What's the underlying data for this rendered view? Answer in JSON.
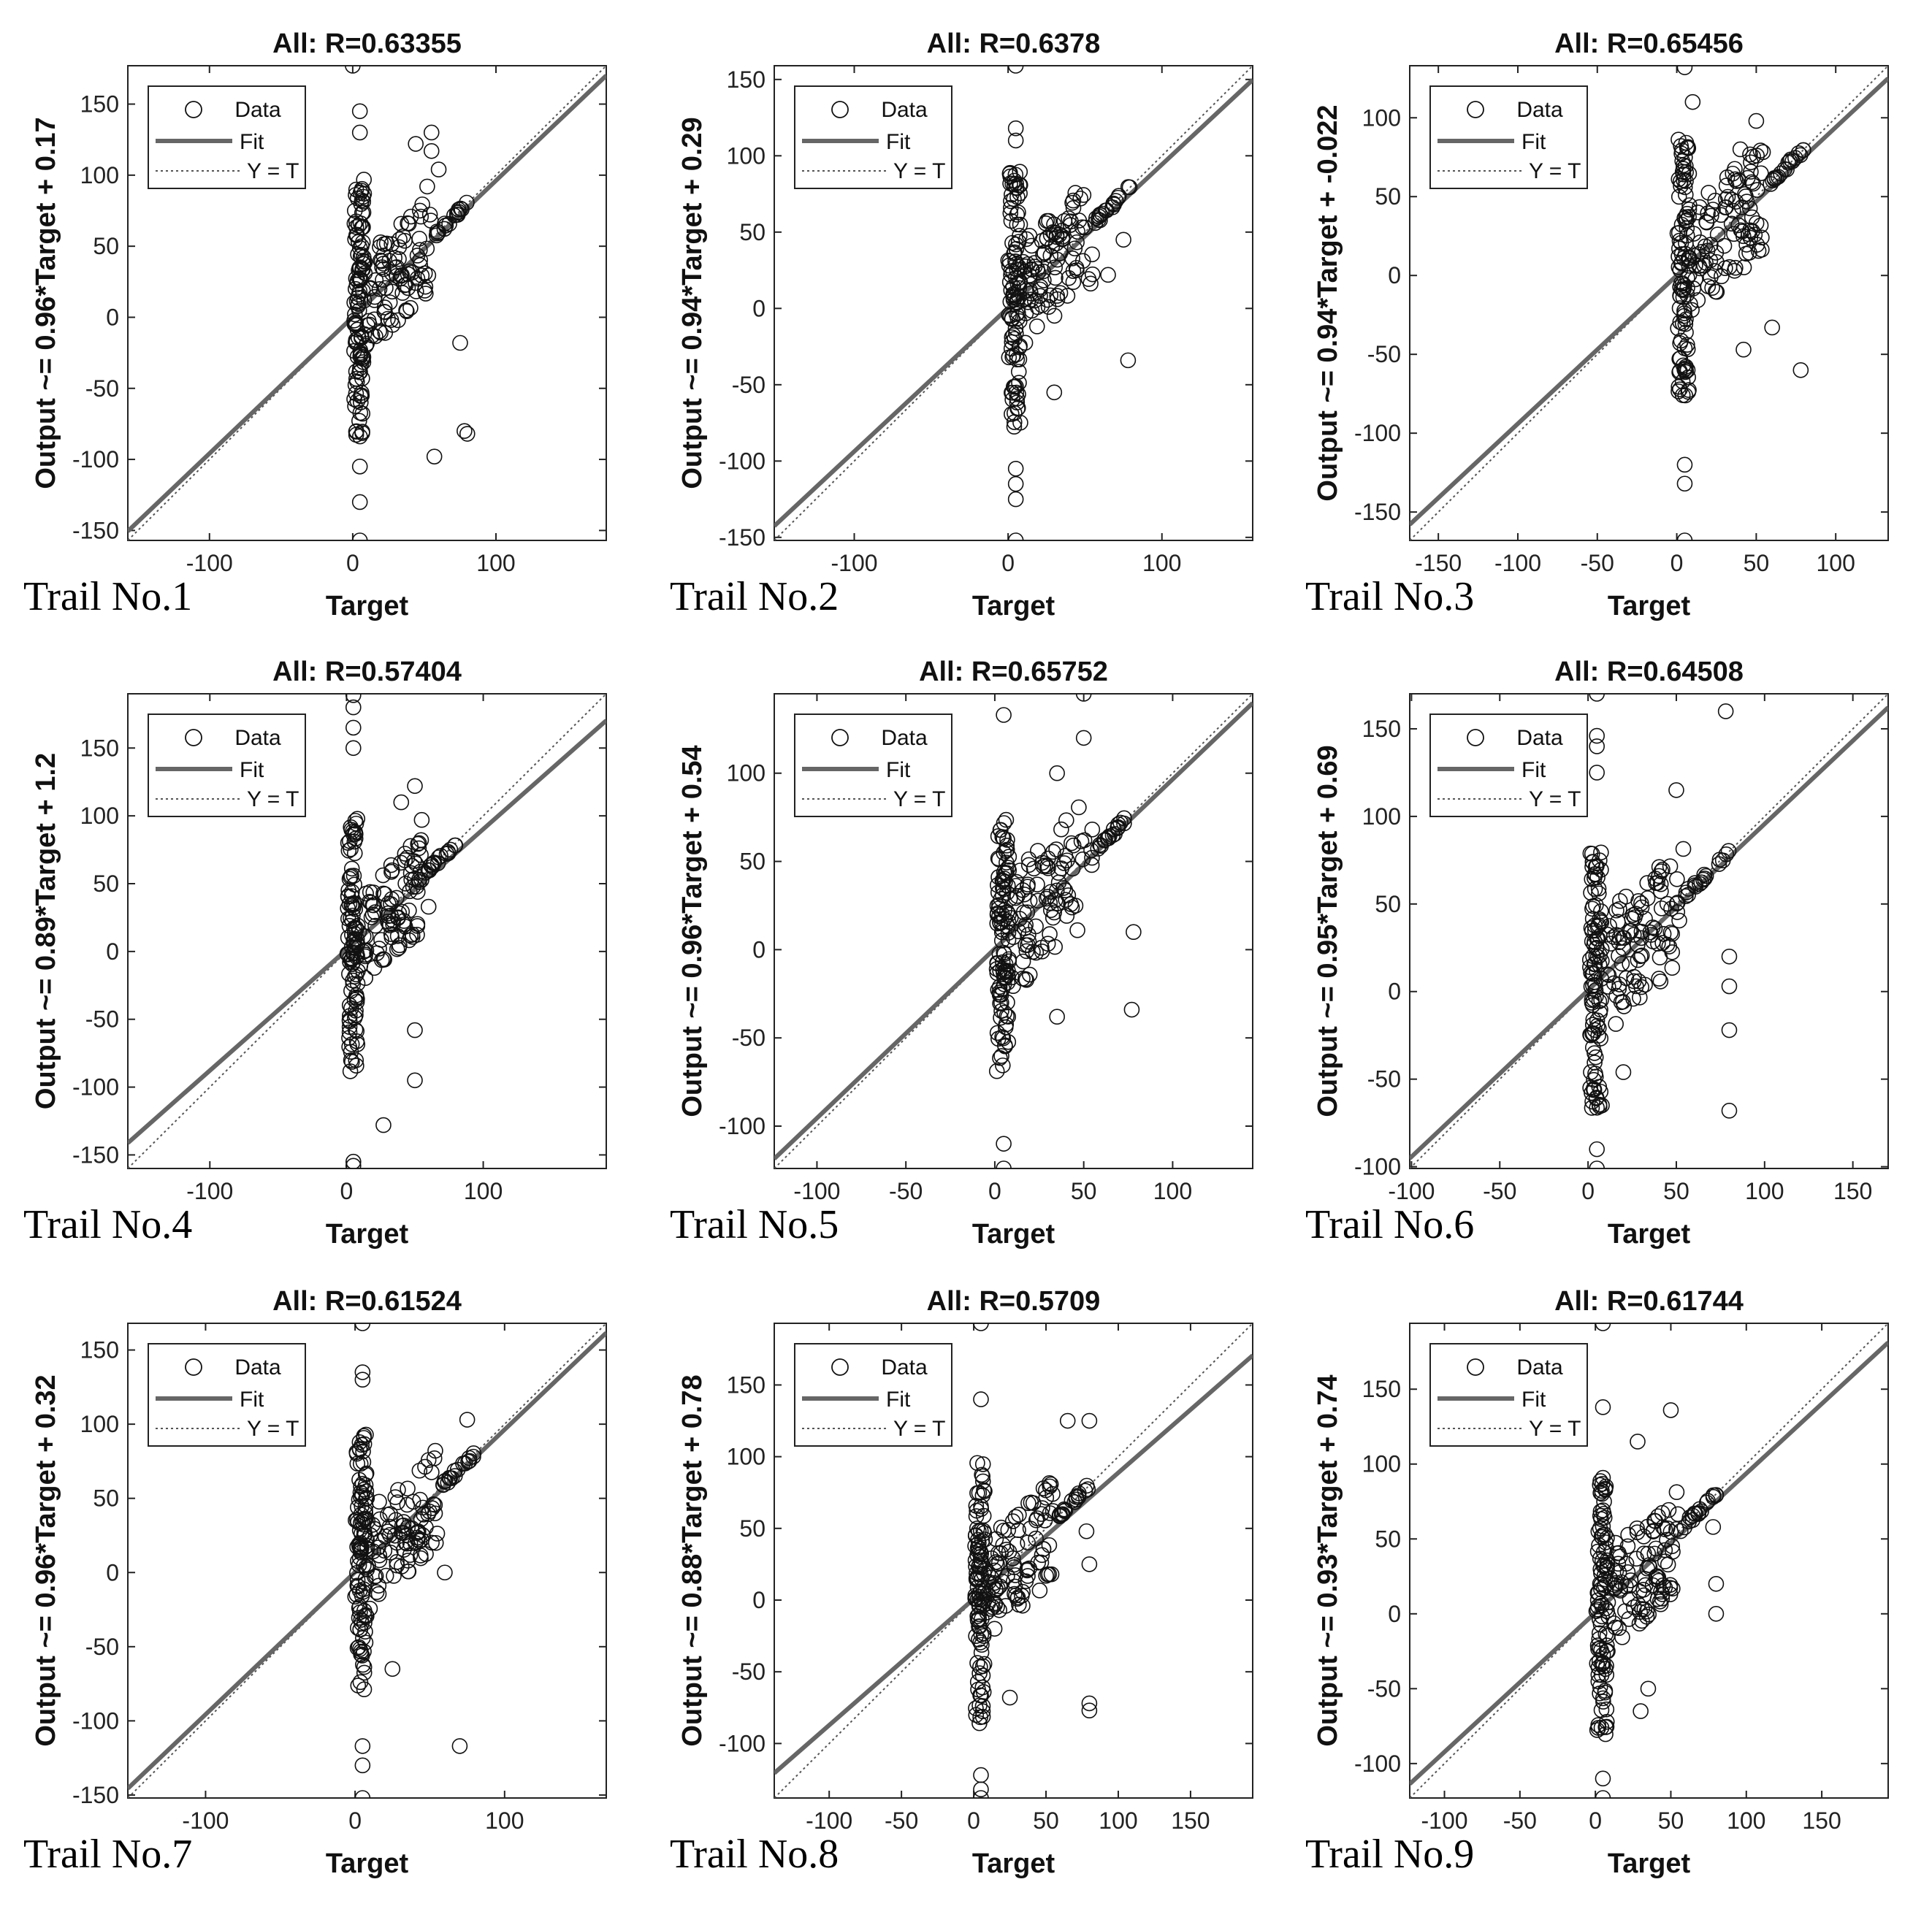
{
  "figure": {
    "legend": {
      "data": "Data",
      "fit": "Fit",
      "yt": "Y = T"
    },
    "colors": {
      "fit_line": "#666666",
      "identity_line": "#555555",
      "marker": "#111111",
      "axis": "#222222"
    }
  },
  "chart_data": [
    {
      "type": "scatter",
      "trial_label": "Trail No.1",
      "title": "All: R=0.63355",
      "xlabel": "Target",
      "ylabel": "Output ~= 0.96*Target + 0.17",
      "slope": 0.96,
      "intercept": 0.17,
      "xlim": [
        -157,
        177
      ],
      "ylim": [
        -157,
        177
      ],
      "xticks": [
        -100,
        0,
        100
      ],
      "yticks": [
        -150,
        -100,
        -50,
        0,
        50,
        100,
        150
      ],
      "seed": 11,
      "extremes": [
        [
          0,
          177
        ],
        [
          5,
          145
        ],
        [
          5,
          130
        ],
        [
          55,
          130
        ],
        [
          44,
          122
        ],
        [
          55,
          117
        ],
        [
          60,
          104
        ],
        [
          52,
          92
        ],
        [
          75,
          -18
        ],
        [
          78,
          -80
        ],
        [
          80,
          -82
        ],
        [
          57,
          -98
        ],
        [
          5,
          -105
        ],
        [
          5,
          -130
        ],
        [
          5,
          -157
        ]
      ]
    },
    {
      "type": "scatter",
      "trial_label": "Trail No.2",
      "title": "All: R=0.6378",
      "xlabel": "Target",
      "ylabel": "Output ~= 0.94*Target + 0.29",
      "slope": 0.94,
      "intercept": 0.29,
      "xlim": [
        -152,
        159
      ],
      "ylim": [
        -152,
        159
      ],
      "xticks": [
        -100,
        0,
        100
      ],
      "yticks": [
        -150,
        -100,
        -50,
        0,
        50,
        100,
        150
      ],
      "seed": 22,
      "extremes": [
        [
          5,
          159
        ],
        [
          5,
          118
        ],
        [
          5,
          110
        ],
        [
          75,
          45
        ],
        [
          65,
          22
        ],
        [
          78,
          -34
        ],
        [
          30,
          -55
        ],
        [
          5,
          -105
        ],
        [
          5,
          -115
        ],
        [
          5,
          -125
        ],
        [
          5,
          -152
        ]
      ]
    },
    {
      "type": "scatter",
      "trial_label": "Trail No.3",
      "title": "All: R=0.65456",
      "xlabel": "Target",
      "ylabel": "Output ~= 0.94*Target + -0.022",
      "slope": 0.94,
      "intercept": -0.022,
      "xlim": [
        -168,
        133
      ],
      "ylim": [
        -168,
        133
      ],
      "xticks": [
        -150,
        -100,
        -50,
        0,
        50,
        100
      ],
      "yticks": [
        -150,
        -100,
        -50,
        0,
        50,
        100
      ],
      "seed": 33,
      "extremes": [
        [
          5,
          132
        ],
        [
          10,
          110
        ],
        [
          50,
          98
        ],
        [
          40,
          80
        ],
        [
          60,
          -33
        ],
        [
          78,
          -60
        ],
        [
          42,
          -47
        ],
        [
          5,
          -120
        ],
        [
          5,
          -132
        ],
        [
          5,
          -168
        ]
      ]
    },
    {
      "type": "scatter",
      "trial_label": "Trail No.4",
      "title": "All: R=0.57404",
      "xlabel": "Target",
      "ylabel": "Output ~= 0.89*Target + 1.2",
      "slope": 0.89,
      "intercept": 1.2,
      "xlim": [
        -160,
        190
      ],
      "ylim": [
        -160,
        190
      ],
      "xticks": [
        -100,
        0,
        100
      ],
      "yticks": [
        -150,
        -100,
        -50,
        0,
        50,
        100,
        150
      ],
      "seed": 44,
      "extremes": [
        [
          5,
          189
        ],
        [
          5,
          180
        ],
        [
          5,
          165
        ],
        [
          5,
          150
        ],
        [
          50,
          122
        ],
        [
          40,
          110
        ],
        [
          55,
          97
        ],
        [
          60,
          33
        ],
        [
          50,
          -58
        ],
        [
          50,
          -95
        ],
        [
          27,
          -128
        ],
        [
          5,
          -155
        ],
        [
          5,
          -158
        ]
      ]
    },
    {
      "type": "scatter",
      "trial_label": "Trail No.5",
      "title": "All: R=0.65752",
      "xlabel": "Target",
      "ylabel": "Output ~= 0.96*Target + 0.54",
      "slope": 0.96,
      "intercept": 0.54,
      "xlim": [
        -124,
        145
      ],
      "ylim": [
        -124,
        145
      ],
      "xticks": [
        -100,
        -50,
        0,
        50,
        100
      ],
      "yticks": [
        -100,
        -50,
        0,
        50,
        100
      ],
      "seed": 55,
      "extremes": [
        [
          50,
          145
        ],
        [
          5,
          133
        ],
        [
          50,
          120
        ],
        [
          35,
          100
        ],
        [
          78,
          10
        ],
        [
          77,
          -34
        ],
        [
          35,
          -38
        ],
        [
          5,
          -110
        ],
        [
          5,
          -124
        ]
      ]
    },
    {
      "type": "scatter",
      "trial_label": "Trail No.6",
      "title": "All: R=0.64508",
      "xlabel": "Target",
      "ylabel": "Output ~= 0.95*Target + 0.69",
      "slope": 0.95,
      "intercept": 0.69,
      "xlim": [
        -101,
        170
      ],
      "ylim": [
        -101,
        170
      ],
      "xticks": [
        -100,
        -50,
        0,
        50,
        100,
        150
      ],
      "yticks": [
        -100,
        -50,
        0,
        50,
        100,
        150
      ],
      "seed": 66,
      "extremes": [
        [
          5,
          170
        ],
        [
          78,
          160
        ],
        [
          5,
          146
        ],
        [
          5,
          140
        ],
        [
          5,
          125
        ],
        [
          50,
          115
        ],
        [
          80,
          20
        ],
        [
          80,
          3
        ],
        [
          80,
          -22
        ],
        [
          80,
          -68
        ],
        [
          20,
          -46
        ],
        [
          5,
          -90
        ],
        [
          5,
          -101
        ]
      ]
    },
    {
      "type": "scatter",
      "trial_label": "Trail No.7",
      "title": "All: R=0.61524",
      "xlabel": "Target",
      "ylabel": "Output ~= 0.96*Target + 0.32",
      "slope": 0.96,
      "intercept": 0.32,
      "xlim": [
        -152,
        168
      ],
      "ylim": [
        -152,
        168
      ],
      "xticks": [
        -100,
        0,
        100
      ],
      "yticks": [
        -150,
        -100,
        -50,
        0,
        50,
        100,
        150
      ],
      "seed": 77,
      "extremes": [
        [
          5,
          168
        ],
        [
          5,
          135
        ],
        [
          5,
          130
        ],
        [
          75,
          103
        ],
        [
          70,
          -117
        ],
        [
          60,
          0
        ],
        [
          25,
          -65
        ],
        [
          5,
          -117
        ],
        [
          5,
          -130
        ],
        [
          5,
          -152
        ]
      ]
    },
    {
      "type": "scatter",
      "trial_label": "Trail No.8",
      "title": "All: R=0.5709",
      "xlabel": "Target",
      "ylabel": "Output ~= 0.88*Target + 0.78",
      "slope": 0.88,
      "intercept": 0.78,
      "xlim": [
        -138,
        193
      ],
      "ylim": [
        -138,
        193
      ],
      "xticks": [
        -100,
        -50,
        0,
        50,
        100,
        150
      ],
      "yticks": [
        -100,
        -50,
        0,
        50,
        100,
        150
      ],
      "seed": 88,
      "extremes": [
        [
          5,
          193
        ],
        [
          5,
          140
        ],
        [
          80,
          125
        ],
        [
          65,
          125
        ],
        [
          78,
          48
        ],
        [
          80,
          25
        ],
        [
          80,
          -72
        ],
        [
          80,
          -77
        ],
        [
          25,
          -68
        ],
        [
          5,
          -122
        ],
        [
          5,
          -132
        ],
        [
          5,
          -138
        ]
      ]
    },
    {
      "type": "scatter",
      "trial_label": "Trail No.9",
      "title": "All: R=0.61744",
      "xlabel": "Target",
      "ylabel": "Output ~= 0.93*Target + 0.74",
      "slope": 0.93,
      "intercept": 0.74,
      "xlim": [
        -123,
        194
      ],
      "ylim": [
        -123,
        194
      ],
      "xticks": [
        -100,
        -50,
        0,
        50,
        100,
        150
      ],
      "yticks": [
        -100,
        -50,
        0,
        50,
        100,
        150
      ],
      "seed": 99,
      "extremes": [
        [
          5,
          194
        ],
        [
          5,
          138
        ],
        [
          50,
          136
        ],
        [
          28,
          115
        ],
        [
          78,
          58
        ],
        [
          80,
          20
        ],
        [
          80,
          0
        ],
        [
          30,
          -65
        ],
        [
          35,
          -50
        ],
        [
          5,
          -110
        ],
        [
          5,
          -123
        ]
      ]
    }
  ]
}
